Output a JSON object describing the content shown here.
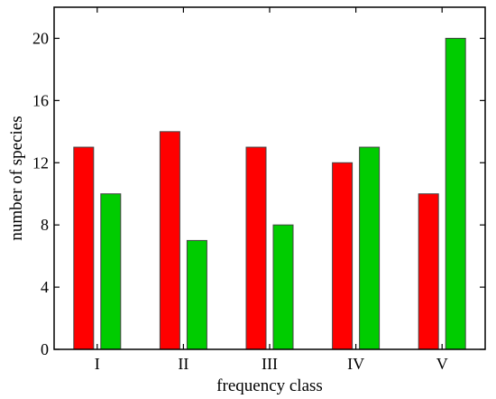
{
  "chart_data": {
    "type": "bar",
    "xlabel": "frequency class",
    "ylabel": "number of species",
    "categories": [
      "I",
      "II",
      "III",
      "IV",
      "V"
    ],
    "series": [
      {
        "values": [
          13,
          14,
          13,
          12,
          10
        ],
        "color": "#ff0000"
      },
      {
        "values": [
          10,
          7,
          8,
          13,
          20
        ],
        "color": "#00cc00"
      }
    ],
    "ylim": [
      0,
      22
    ],
    "yticks": [
      0,
      4,
      8,
      12,
      16,
      20
    ],
    "grid": false,
    "legend": "none"
  }
}
